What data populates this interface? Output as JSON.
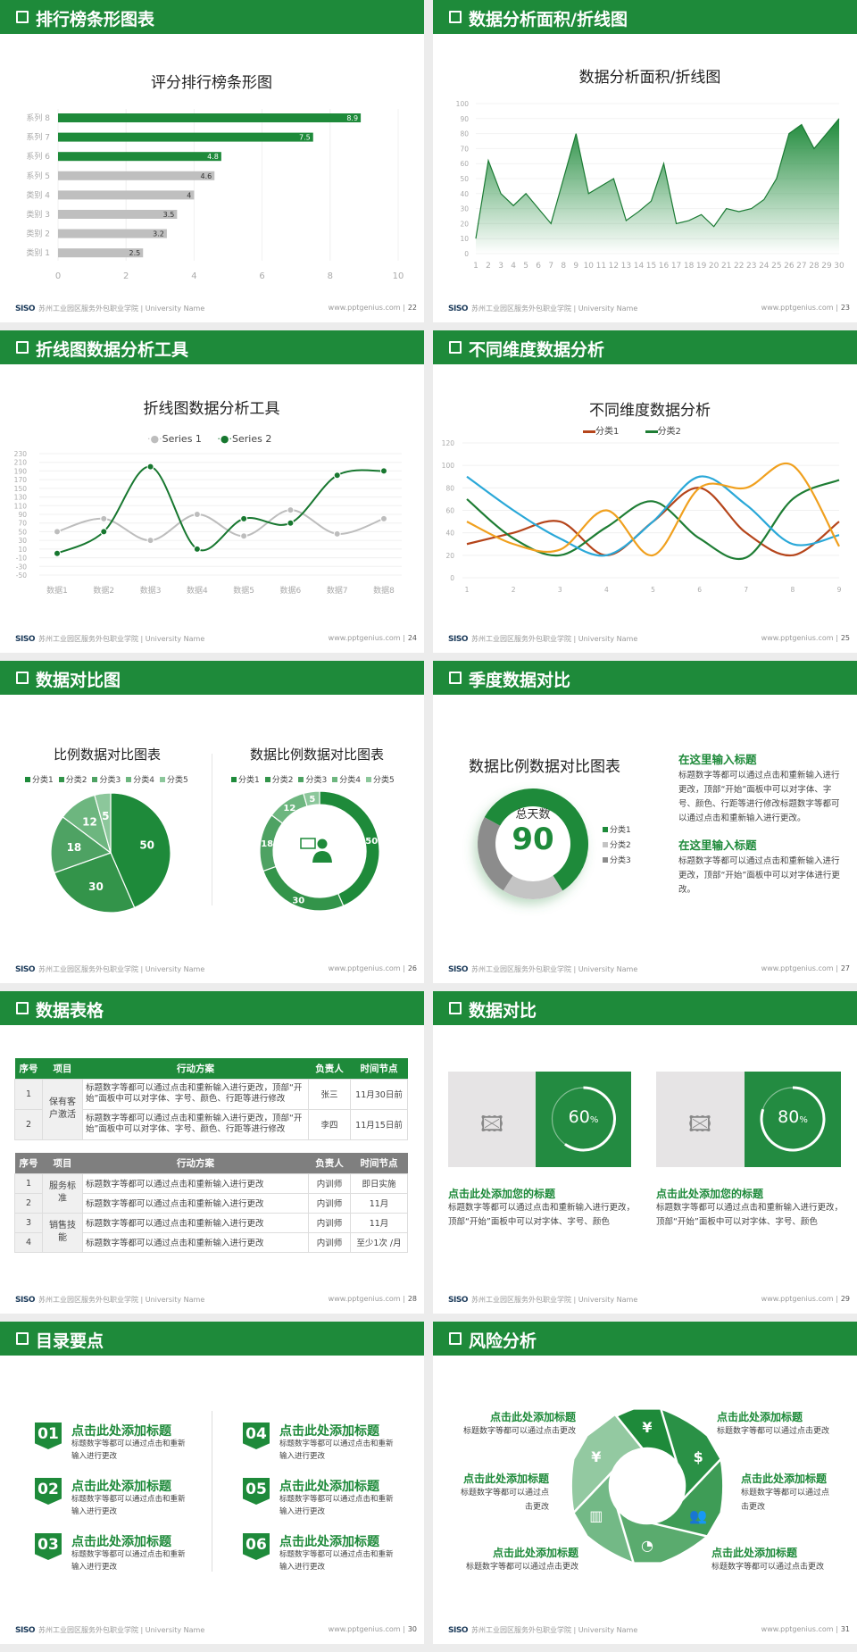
{
  "footer": {
    "logo": "SISO",
    "school": "苏州工业园区服务外包职业学院 | University Name",
    "site": "www.pptgenius.com  |"
  },
  "colors": {
    "green": "#1e8a3a",
    "gray": "#bfbfbf",
    "header_bg": "#1e8a3a"
  },
  "slides": [
    {
      "title": "排行榜条形图表",
      "page": "22"
    },
    {
      "title": "数据分析面积/折线图",
      "page": "23"
    },
    {
      "title": "折线图数据分析工具",
      "page": "24"
    },
    {
      "title": "不同维度数据分析",
      "page": "25"
    },
    {
      "title": "数据对比图",
      "page": "26"
    },
    {
      "title": "季度数据对比",
      "page": "27"
    },
    {
      "title": "数据表格",
      "page": "28"
    },
    {
      "title": "数据对比",
      "page": "29"
    },
    {
      "title": "目录要点",
      "page": "30"
    },
    {
      "title": "风险分析",
      "page": "31"
    }
  ],
  "chart_data": [
    {
      "type": "bar",
      "title": "评分排行榜条形图",
      "categories": [
        "系列 8",
        "系列 7",
        "系列 6",
        "系列 5",
        "类别 4",
        "类别 3",
        "类别 2",
        "类别 1"
      ],
      "values": [
        8.9,
        7.5,
        4.8,
        4.6,
        4,
        3.5,
        3.2,
        2.5
      ],
      "highlight": [
        true,
        true,
        true,
        false,
        false,
        false,
        false,
        false
      ],
      "xlim": [
        0,
        10
      ],
      "xticks": [
        "0",
        "2",
        "4",
        "6",
        "8",
        "10"
      ]
    },
    {
      "type": "area",
      "title": "数据分析面积/折线图",
      "x": [
        "1",
        "2",
        "3",
        "4",
        "5",
        "6",
        "7",
        "8",
        "9",
        "10",
        "11",
        "12",
        "13",
        "14",
        "15",
        "16",
        "17",
        "18",
        "19",
        "20",
        "21",
        "22",
        "23",
        "24",
        "25",
        "26",
        "27",
        "28",
        "29",
        "30"
      ],
      "values": [
        10,
        62,
        40,
        32,
        40,
        30,
        20,
        50,
        80,
        40,
        45,
        50,
        22,
        28,
        35,
        60,
        20,
        22,
        26,
        18,
        30,
        28,
        30,
        36,
        50,
        80,
        86,
        70,
        80,
        90
      ],
      "ylim": [
        0,
        100
      ],
      "yticks": [
        "0",
        "10",
        "20",
        "30",
        "40",
        "50",
        "60",
        "70",
        "80",
        "90",
        "100"
      ]
    },
    {
      "type": "line",
      "title": "折线图数据分析工具",
      "categories": [
        "数据1",
        "数据2",
        "数据3",
        "数据4",
        "数据5",
        "数据6",
        "数据7",
        "数据8"
      ],
      "series": [
        {
          "name": "Series 1",
          "color": "#bdbdbd",
          "values": [
            50,
            80,
            30,
            90,
            40,
            100,
            45,
            80
          ]
        },
        {
          "name": "Series 2",
          "color": "#17772f",
          "values": [
            0,
            50,
            200,
            10,
            80,
            70,
            180,
            190
          ]
        }
      ],
      "ylim": [
        -50,
        230
      ],
      "yticks": [
        "230",
        "210",
        "190",
        "170",
        "150",
        "130",
        "110",
        "90",
        "70",
        "50",
        "30",
        "10",
        "-10",
        "-30",
        "-50"
      ],
      "smooth": true
    },
    {
      "type": "line",
      "title": "不同维度数据分析",
      "categories": [
        "1",
        "2",
        "3",
        "4",
        "5",
        "6",
        "7",
        "8",
        "9"
      ],
      "series": [
        {
          "name": "分类1",
          "color": "#b5451b",
          "values": [
            30,
            40,
            50,
            20,
            50,
            80,
            40,
            20,
            50
          ]
        },
        {
          "name": "分类2",
          "color": "#1e7d34",
          "values": [
            70,
            35,
            20,
            45,
            68,
            35,
            18,
            70,
            87
          ]
        },
        {
          "color": "#2aa8d8",
          "values": [
            90,
            60,
            35,
            20,
            50,
            90,
            65,
            30,
            38
          ]
        },
        {
          "color": "#f0a01e",
          "values": [
            50,
            30,
            25,
            60,
            20,
            80,
            80,
            100,
            28
          ]
        }
      ],
      "ylim": [
        0,
        120
      ],
      "yticks": [
        "0",
        "20",
        "40",
        "60",
        "80",
        "100",
        "120"
      ],
      "smooth": true
    },
    {
      "type": "pie",
      "title": "比例数据对比图表",
      "categories": [
        "分类1",
        "分类2",
        "分类3",
        "分类4",
        "分类5"
      ],
      "values": [
        50,
        30,
        18,
        12,
        5
      ],
      "colors": [
        "#1e8a3a",
        "#33944a",
        "#4ea263",
        "#6db67f",
        "#8cc79b"
      ]
    },
    {
      "type": "pie",
      "variant": "donut",
      "title": "数据比例数据对比图表",
      "categories": [
        "分类1",
        "分类2",
        "分类3",
        "分类4",
        "分类5"
      ],
      "values": [
        50,
        30,
        18,
        12,
        5
      ],
      "colors": [
        "#1e8a3a",
        "#33944a",
        "#4ea263",
        "#6db67f",
        "#8cc79b"
      ],
      "center_icon": "presenter-icon"
    },
    {
      "type": "pie",
      "variant": "donut",
      "title": "数据比例数据对比图表",
      "categories": [
        "分类1",
        "分类2",
        "分类3"
      ],
      "values": [
        58,
        18,
        24
      ],
      "colors": [
        "#1e8a3a",
        "#c4c4c4",
        "#8c8c8c"
      ],
      "center_label": "总天数",
      "center_value": "90"
    }
  ],
  "quarter": {
    "blocks": [
      {
        "heading": "在这里输入标题",
        "text": "标题数字等都可以通过点击和重新输入进行更改，顶部“开始”面板中可以对字体、字号、颜色、行距等进行修改标题数字等都可以通过点击和重新输入进行更改。"
      },
      {
        "heading": "在这里输入标题",
        "text": "标题数字等都可以通过点击和重新输入进行更改，顶部“开始”面板中可以对字体进行更改。"
      }
    ]
  },
  "tables": [
    {
      "headers": [
        "序号",
        "项目",
        "行动方案",
        "负责人",
        "时间节点"
      ],
      "group": "保有客户激活",
      "rows": [
        [
          "1",
          "标题数字等都可以通过点击和重新输入进行更改，顶部“开始”面板中可以对字体、字号、颜色、行距等进行修改",
          "张三",
          "11月30日前"
        ],
        [
          "2",
          "标题数字等都可以通过点击和重新输入进行更改，顶部“开始”面板中可以对字体、字号、颜色、行距等进行修改",
          "李四",
          "11月15日前"
        ]
      ]
    },
    {
      "headers": [
        "序号",
        "项目",
        "行动方案",
        "负责人",
        "时间节点"
      ],
      "groups": [
        "服务标准",
        "销售技能"
      ],
      "rows": [
        [
          "1",
          "标题数字等都可以通过点击和重新输入进行更改",
          "内训师",
          "即日实施"
        ],
        [
          "2",
          "标题数字等都可以通过点击和重新输入进行更改",
          "内训师",
          "11月"
        ],
        [
          "3",
          "标题数字等都可以通过点击和重新输入进行更改",
          "内训师",
          "11月"
        ],
        [
          "4",
          "标题数字等都可以通过点击和重新输入进行更改",
          "内训师",
          "至少1次 /月"
        ]
      ]
    }
  ],
  "compare": [
    {
      "percent": 60,
      "value": "60",
      "unit": "%",
      "heading": "点击此处添加您的标题",
      "text": "标题数字等都可以通过点击和重新输入进行更改，顶部“开始”面板中可以对字体、字号、颜色"
    },
    {
      "percent": 80,
      "value": "80",
      "unit": "%",
      "heading": "点击此处添加您的标题",
      "text": "标题数字等都可以通过点击和重新输入进行更改，顶部“开始”面板中可以对字体、字号、颜色"
    }
  ],
  "toc": [
    {
      "num": "01",
      "heading": "点击此处添加标题",
      "text": "标题数字等都可以通过点击和重新输入进行更改"
    },
    {
      "num": "02",
      "heading": "点击此处添加标题",
      "text": "标题数字等都可以通过点击和重新输入进行更改"
    },
    {
      "num": "03",
      "heading": "点击此处添加标题",
      "text": "标题数字等都可以通过点击和重新输入进行更改"
    },
    {
      "num": "04",
      "heading": "点击此处添加标题",
      "text": "标题数字等都可以通过点击和重新输入进行更改"
    },
    {
      "num": "05",
      "heading": "点击此处添加标题",
      "text": "标题数字等都可以通过点击和重新输入进行更改"
    },
    {
      "num": "06",
      "heading": "点击此处添加标题",
      "text": "标题数字等都可以通过点击和重新输入进行更改"
    }
  ],
  "risk": {
    "items": [
      {
        "heading": "点击此处添加标题",
        "text": "标题数字等都可以通过点击更改",
        "icon": "money-bag-icon"
      },
      {
        "heading": "点击此处添加标题",
        "text": "标题数字等都可以通过点击更改",
        "icon": "coins-icon"
      },
      {
        "heading": "点击此处添加标题",
        "text": "标题数字等都可以通过点击更改",
        "icon": "users-icon"
      },
      {
        "heading": "点击此处添加标题",
        "text": "标题数字等都可以通过点击更改",
        "icon": "pie-chart-icon"
      },
      {
        "heading": "点击此处添加标题",
        "text": "标题数字等都可以通过点击更改",
        "icon": "building-icon"
      },
      {
        "heading": "点击此处添加标题",
        "text": "标题数字等都可以通过点击更改",
        "icon": "hand-money-icon"
      }
    ]
  }
}
